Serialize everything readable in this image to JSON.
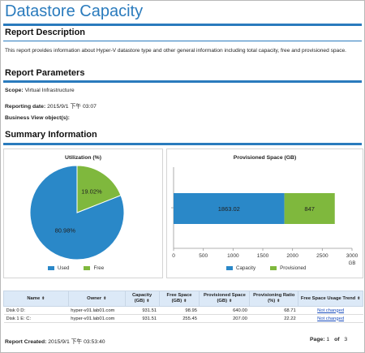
{
  "report": {
    "title": "Datastore Capacity",
    "description_heading": "Report Description",
    "description": "This report provides information about Hyper-V datastore type and other general information including total capacity, free and provisioned space.",
    "parameters_heading": "Report Parameters",
    "scope_label": "Scope:",
    "scope_value": "Virtual Infrastructure",
    "reporting_date_label": "Reporting date:",
    "reporting_date_value": "2015/9/1 下午 03:07",
    "business_view_label": "Business View object(s):",
    "summary_heading": "Summary Information"
  },
  "colors": {
    "accent": "#2a7bbd",
    "used": "#2a88c8",
    "free": "#7fb83d"
  },
  "chart_data": [
    {
      "type": "pie",
      "title": "Utilization (%)",
      "labels": [
        "Used",
        "Free"
      ],
      "values": [
        80.98,
        19.02
      ],
      "value_labels": [
        "80.98%",
        "19.02%"
      ],
      "colors": [
        "#2a88c8",
        "#7fb83d"
      ],
      "legend": "bottom"
    },
    {
      "type": "bar",
      "orientation": "horizontal",
      "stacked": true,
      "title": "Provisioned Space (GB)",
      "categories": [
        ""
      ],
      "series": [
        {
          "name": "Capacity",
          "values": [
            1863.02
          ],
          "label": "1863.02",
          "color": "#2a88c8"
        },
        {
          "name": "Provisioned",
          "values": [
            847
          ],
          "label": "847",
          "color": "#7fb83d"
        }
      ],
      "xlim": [
        0,
        3000
      ],
      "xticks": [
        "0",
        "500",
        "1000",
        "1500",
        "2000",
        "2500",
        "3000"
      ],
      "xunit": "GB",
      "legend": "bottom"
    }
  ],
  "table": {
    "columns": [
      "Name",
      "Owner",
      "Capacity (GB)",
      "Free Space (GB)",
      "Provisioned Space (GB)",
      "Provisioning Ratio (%)",
      "Free Space Usage Trend"
    ],
    "rows": [
      [
        "Disk 0  D:",
        "hyper-v01.lab01.com",
        "931.51",
        "98.95",
        "640.00",
        "68.71",
        "Not changed"
      ],
      [
        "Disk 1  E: C:",
        "hyper-v01.lab01.com",
        "931.51",
        "255.45",
        "207.00",
        "22.22",
        "Not changed"
      ]
    ]
  },
  "footer": {
    "created_label": "Report Created:",
    "created_value": "2015/9/1 下午 03:53:40",
    "page_label": "Page:",
    "page_current": "1",
    "page_of": "of",
    "page_total": "3"
  }
}
